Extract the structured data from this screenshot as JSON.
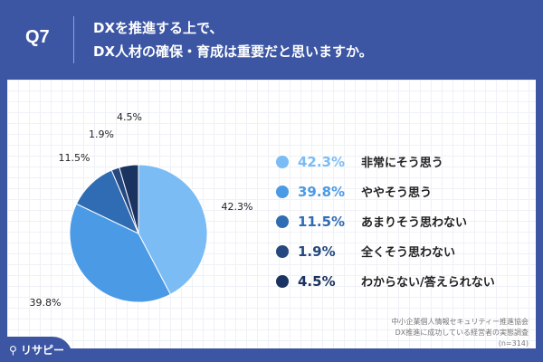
{
  "header": {
    "q": "Q7",
    "title_line1": "DXを推進する上で、",
    "title_line2": "DX人材の確保・育成は重要だと思いますか。"
  },
  "chart_data": {
    "type": "pie",
    "title": "DXを推進する上で、DX人材の確保・育成は重要だと思いますか。",
    "categories": [
      "非常にそう思う",
      "ややそう思う",
      "あまりそう思わない",
      "全くそう思わない",
      "わからない/答えられない"
    ],
    "values": [
      42.3,
      39.8,
      11.5,
      1.9,
      4.5
    ],
    "labels": [
      "42.3%",
      "39.8%",
      "11.5%",
      "1.9%",
      "4.5%"
    ],
    "colors": [
      "#7bbcf4",
      "#4b9ae6",
      "#2f6cb3",
      "#25497f",
      "#1b3360"
    ],
    "legend_placement": "right"
  },
  "source": {
    "line1": "中小企業個人情報セキュリティー推進協会",
    "line2": "DX推進に成功している経営者の実態調査",
    "line3": "(n=314)"
  },
  "logo": "リサピー"
}
